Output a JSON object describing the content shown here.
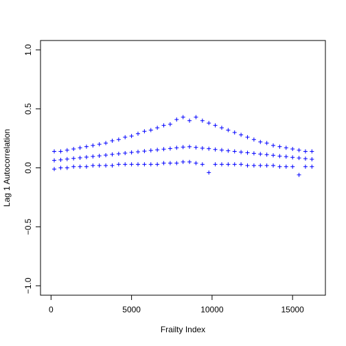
{
  "chart_data": {
    "type": "scatter",
    "xlabel": "Frailty Index",
    "ylabel": "Lag 1 Autocorrelation",
    "color": "#0000ff",
    "marker": "+",
    "xlim": [
      -654,
      17039
    ],
    "ylim": [
      -1.08,
      1.08
    ],
    "xticks": [
      0,
      5000,
      10000,
      15000
    ],
    "yticks": [
      {
        "value": -1.0,
        "label": "−1.0"
      },
      {
        "value": -0.5,
        "label": "−0.5"
      },
      {
        "value": 0.0,
        "label": "0.0"
      },
      {
        "value": 0.5,
        "label": "0.5"
      },
      {
        "value": 1.0,
        "label": "1.0"
      }
    ],
    "series": [
      {
        "x": [
          200,
          600,
          1000,
          1400,
          1800,
          2200,
          2600,
          3000,
          3400,
          3800,
          4200,
          4600,
          5000,
          5400,
          5800,
          6200,
          6600,
          7000,
          7400,
          7800,
          8200,
          8600,
          9000,
          9400,
          9800,
          10200,
          10600,
          11000,
          11400,
          11800,
          12200,
          12600,
          13000,
          13400,
          13800,
          14200,
          14600,
          15000,
          15400,
          15800,
          16200,
          200,
          600,
          1000,
          1400,
          1800,
          2200,
          2600,
          3000,
          3400,
          3800,
          4200,
          4600,
          5000,
          5400,
          5800,
          6200,
          6600,
          7000,
          7400,
          7800,
          8200,
          8600,
          9000,
          9400,
          9800,
          10200,
          10600,
          11000,
          11400,
          11800,
          12200,
          12600,
          13000,
          13400,
          13800,
          14200,
          14600,
          15000,
          15400,
          15800,
          16200,
          200,
          600,
          1000,
          1400,
          1800,
          2200,
          2600,
          3000,
          3400,
          3800,
          4200,
          4600,
          5000,
          5400,
          5800,
          6200,
          6600,
          7000,
          7400,
          7800,
          8200,
          8600,
          9000,
          9400,
          9800,
          10200,
          10600,
          11000,
          11400,
          11800,
          12200,
          12600,
          13000,
          13400,
          13800,
          14200,
          14600,
          15000,
          15400,
          15800,
          16200
        ],
        "y": [
          -0.01,
          0.0,
          0.0,
          0.01,
          0.01,
          0.01,
          0.02,
          0.02,
          0.02,
          0.02,
          0.03,
          0.03,
          0.03,
          0.03,
          0.03,
          0.03,
          0.03,
          0.04,
          0.04,
          0.04,
          0.05,
          0.05,
          0.04,
          0.03,
          -0.04,
          0.03,
          0.03,
          0.03,
          0.03,
          0.03,
          0.02,
          0.02,
          0.02,
          0.02,
          0.02,
          0.01,
          0.01,
          0.01,
          -0.06,
          0.01,
          0.01,
          0.063,
          0.068,
          0.074,
          0.08,
          0.085,
          0.091,
          0.097,
          0.102,
          0.108,
          0.114,
          0.119,
          0.125,
          0.131,
          0.136,
          0.142,
          0.148,
          0.153,
          0.159,
          0.164,
          0.17,
          0.176,
          0.179,
          0.173,
          0.167,
          0.162,
          0.156,
          0.151,
          0.145,
          0.14,
          0.134,
          0.128,
          0.123,
          0.117,
          0.112,
          0.106,
          0.1,
          0.095,
          0.089,
          0.084,
          0.078,
          0.073,
          0.14,
          0.14,
          0.15,
          0.16,
          0.17,
          0.18,
          0.19,
          0.2,
          0.21,
          0.23,
          0.24,
          0.26,
          0.27,
          0.29,
          0.31,
          0.32,
          0.34,
          0.36,
          0.37,
          0.41,
          0.43,
          0.4,
          0.43,
          0.4,
          0.38,
          0.36,
          0.34,
          0.32,
          0.3,
          0.28,
          0.26,
          0.24,
          0.22,
          0.21,
          0.19,
          0.18,
          0.17,
          0.16,
          0.15,
          0.14,
          0.14
        ]
      }
    ]
  }
}
